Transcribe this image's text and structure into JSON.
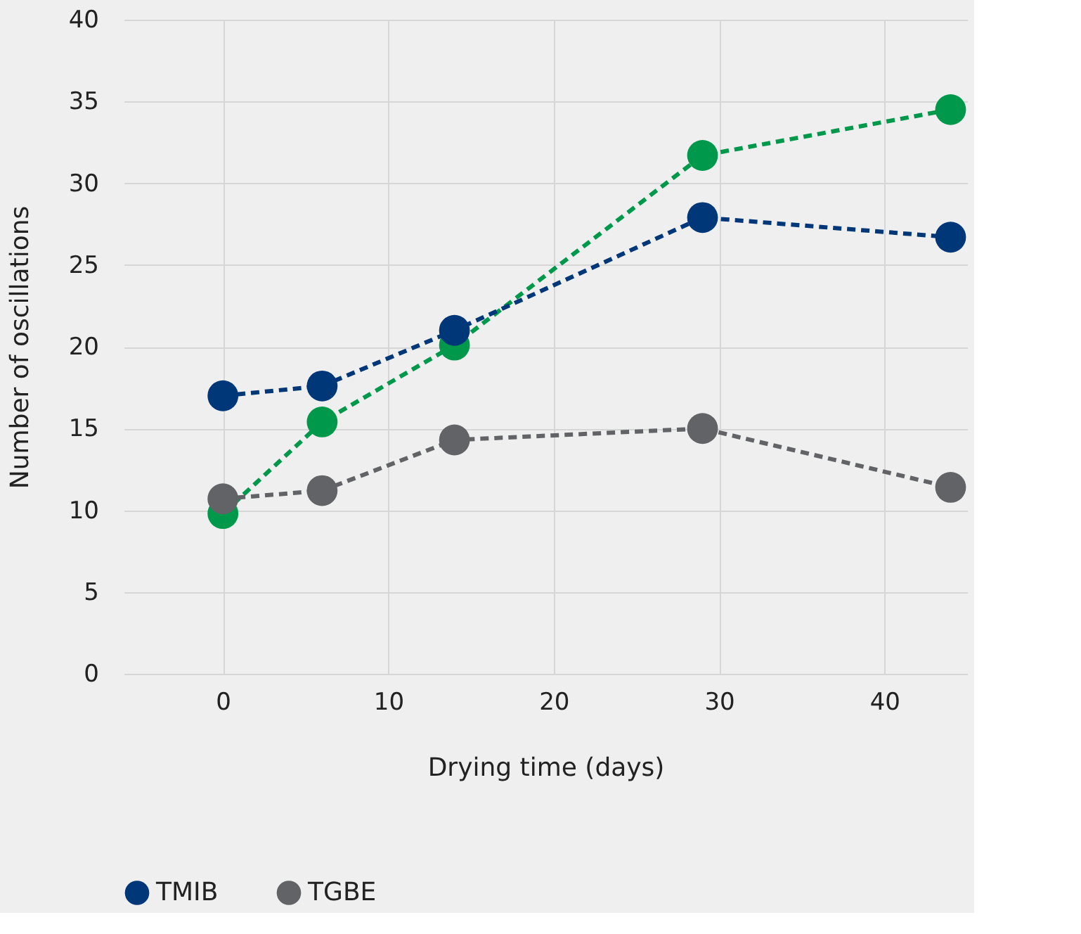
{
  "chart_data": {
    "type": "line",
    "xlabel": "Drying time (days)",
    "ylabel": "Number of oscillations",
    "x": [
      0,
      6,
      14,
      29,
      44
    ],
    "series": [
      {
        "color": "#00984a",
        "values": [
          9.8,
          15.4,
          20.1,
          31.7,
          34.5
        ]
      },
      {
        "name": "TMIB",
        "color": "#003778",
        "values": [
          17.0,
          17.6,
          21.0,
          27.9,
          26.7
        ]
      },
      {
        "name": "TGBE",
        "color": "#626366",
        "values": [
          10.7,
          11.2,
          14.3,
          15.0,
          11.4
        ]
      }
    ],
    "xlim": [
      -6,
      45
    ],
    "xticks": [
      0,
      10,
      20,
      30,
      40
    ],
    "ylim": [
      0,
      40
    ],
    "yticks": [
      0,
      5,
      10,
      15,
      20,
      25,
      30,
      35,
      40
    ],
    "grid": true,
    "legend": "bottom",
    "marker": "circle",
    "line_style": "dashed"
  }
}
